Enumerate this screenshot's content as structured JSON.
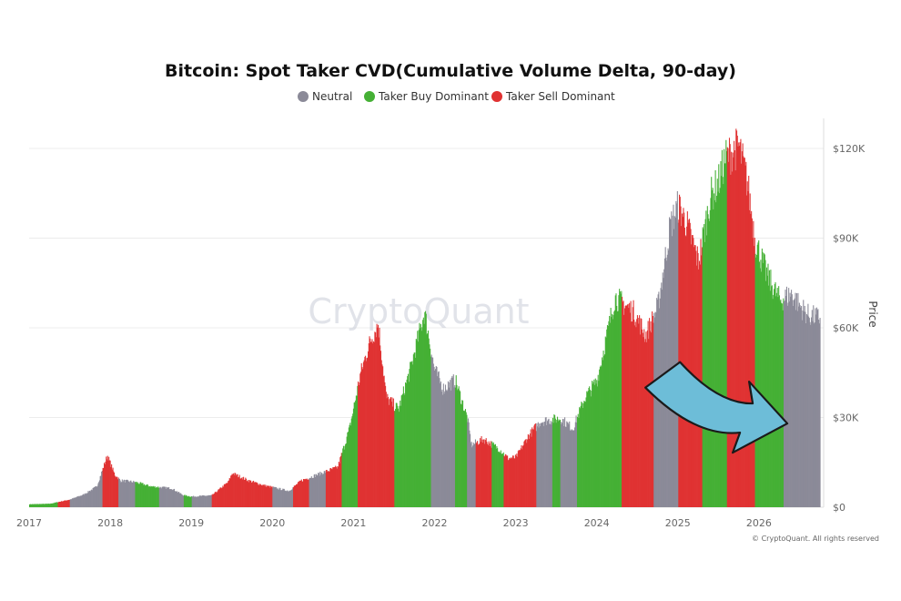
{
  "chart_data": {
    "type": "bar",
    "title": "Bitcoin: Spot Taker CVD(Cumulative Volume Delta, 90-day)",
    "ylabel": "Price",
    "ylim": [
      0,
      130000
    ],
    "yticks": [
      {
        "value": 0,
        "label": "$0"
      },
      {
        "value": 30000,
        "label": "$30K"
      },
      {
        "value": 60000,
        "label": "$60K"
      },
      {
        "value": 90000,
        "label": "$90K"
      },
      {
        "value": 120000,
        "label": "$120K"
      }
    ],
    "xlim": [
      2017,
      2026.75
    ],
    "xticks": [
      "2017",
      "2018",
      "2019",
      "2020",
      "2021",
      "2022",
      "2023",
      "2024",
      "2025",
      "2026"
    ],
    "grid": true,
    "legend_position": "top-center",
    "series": [
      {
        "name": "Neutral",
        "color": "#8b8a98"
      },
      {
        "name": "Taker Buy Dominant",
        "color": "#45b035"
      },
      {
        "name": "Taker Sell Dominant",
        "color": "#e03232"
      }
    ],
    "price_points": [
      [
        2017.0,
        1000
      ],
      [
        2017.25,
        1150
      ],
      [
        2017.5,
        2600
      ],
      [
        2017.67,
        4300
      ],
      [
        2017.83,
        7000
      ],
      [
        2017.96,
        17500
      ],
      [
        2018.05,
        11000
      ],
      [
        2018.12,
        9000
      ],
      [
        2018.3,
        8500
      ],
      [
        2018.5,
        7000
      ],
      [
        2018.75,
        6400
      ],
      [
        2018.9,
        4000
      ],
      [
        2019.0,
        3600
      ],
      [
        2019.25,
        4000
      ],
      [
        2019.45,
        8500
      ],
      [
        2019.5,
        11500
      ],
      [
        2019.7,
        9000
      ],
      [
        2019.9,
        7300
      ],
      [
        2020.2,
        5500
      ],
      [
        2020.35,
        9000
      ],
      [
        2020.6,
        11500
      ],
      [
        2020.8,
        13500
      ],
      [
        2020.95,
        27000
      ],
      [
        2021.08,
        45000
      ],
      [
        2021.2,
        56000
      ],
      [
        2021.3,
        62000
      ],
      [
        2021.4,
        37000
      ],
      [
        2021.55,
        33000
      ],
      [
        2021.7,
        47000
      ],
      [
        2021.87,
        66000
      ],
      [
        2021.99,
        47000
      ],
      [
        2022.1,
        40000
      ],
      [
        2022.25,
        43000
      ],
      [
        2022.4,
        30000
      ],
      [
        2022.45,
        21000
      ],
      [
        2022.6,
        23000
      ],
      [
        2022.8,
        19500
      ],
      [
        2022.9,
        16500
      ],
      [
        2023.0,
        16800
      ],
      [
        2023.15,
        24000
      ],
      [
        2023.3,
        29000
      ],
      [
        2023.55,
        30000
      ],
      [
        2023.7,
        26500
      ],
      [
        2023.85,
        37000
      ],
      [
        2024.0,
        43000
      ],
      [
        2024.15,
        62000
      ],
      [
        2024.22,
        71000
      ],
      [
        2024.45,
        66000
      ],
      [
        2024.6,
        58000
      ],
      [
        2024.75,
        68000
      ],
      [
        2024.9,
        95000
      ],
      [
        2025.0,
        102000
      ],
      [
        2025.1,
        96000
      ],
      [
        2025.25,
        83000
      ],
      [
        2025.4,
        105000
      ],
      [
        2025.5,
        110000
      ],
      [
        2025.58,
        118000
      ],
      [
        2025.75,
        122000
      ],
      [
        2025.85,
        110000
      ],
      [
        2025.95,
        90000
      ],
      [
        2026.1,
        78000
      ],
      [
        2026.25,
        70000
      ],
      [
        2026.4,
        72000
      ],
      [
        2026.5,
        68000
      ],
      [
        2026.6,
        65000
      ],
      [
        2026.72,
        64000
      ]
    ],
    "regimes": [
      {
        "start": 2017.0,
        "end": 2017.35,
        "state": "Taker Buy Dominant"
      },
      {
        "start": 2017.35,
        "end": 2017.5,
        "state": "Taker Sell Dominant"
      },
      {
        "start": 2017.5,
        "end": 2017.9,
        "state": "Neutral"
      },
      {
        "start": 2017.9,
        "end": 2018.1,
        "state": "Taker Sell Dominant"
      },
      {
        "start": 2018.1,
        "end": 2018.3,
        "state": "Neutral"
      },
      {
        "start": 2018.3,
        "end": 2018.6,
        "state": "Taker Buy Dominant"
      },
      {
        "start": 2018.6,
        "end": 2018.9,
        "state": "Neutral"
      },
      {
        "start": 2018.9,
        "end": 2019.0,
        "state": "Taker Buy Dominant"
      },
      {
        "start": 2019.0,
        "end": 2019.25,
        "state": "Neutral"
      },
      {
        "start": 2019.25,
        "end": 2019.45,
        "state": "Taker Sell Dominant"
      },
      {
        "start": 2019.45,
        "end": 2020.0,
        "state": "Taker Sell Dominant"
      },
      {
        "start": 2020.0,
        "end": 2020.25,
        "state": "Neutral"
      },
      {
        "start": 2020.25,
        "end": 2020.45,
        "state": "Taker Sell Dominant"
      },
      {
        "start": 2020.45,
        "end": 2020.65,
        "state": "Neutral"
      },
      {
        "start": 2020.65,
        "end": 2020.85,
        "state": "Taker Sell Dominant"
      },
      {
        "start": 2020.85,
        "end": 2021.05,
        "state": "Taker Buy Dominant"
      },
      {
        "start": 2021.05,
        "end": 2021.5,
        "state": "Taker Sell Dominant"
      },
      {
        "start": 2021.5,
        "end": 2021.95,
        "state": "Taker Buy Dominant"
      },
      {
        "start": 2021.95,
        "end": 2022.25,
        "state": "Neutral"
      },
      {
        "start": 2022.25,
        "end": 2022.4,
        "state": "Taker Buy Dominant"
      },
      {
        "start": 2022.4,
        "end": 2022.5,
        "state": "Neutral"
      },
      {
        "start": 2022.5,
        "end": 2022.7,
        "state": "Taker Sell Dominant"
      },
      {
        "start": 2022.7,
        "end": 2022.85,
        "state": "Taker Buy Dominant"
      },
      {
        "start": 2022.85,
        "end": 2023.1,
        "state": "Taker Sell Dominant"
      },
      {
        "start": 2023.1,
        "end": 2023.25,
        "state": "Taker Sell Dominant"
      },
      {
        "start": 2023.25,
        "end": 2023.45,
        "state": "Neutral"
      },
      {
        "start": 2023.45,
        "end": 2023.55,
        "state": "Taker Buy Dominant"
      },
      {
        "start": 2023.55,
        "end": 2023.75,
        "state": "Neutral"
      },
      {
        "start": 2023.75,
        "end": 2024.0,
        "state": "Taker Buy Dominant"
      },
      {
        "start": 2024.0,
        "end": 2024.3,
        "state": "Taker Buy Dominant"
      },
      {
        "start": 2024.3,
        "end": 2024.7,
        "state": "Taker Sell Dominant"
      },
      {
        "start": 2024.7,
        "end": 2025.0,
        "state": "Neutral"
      },
      {
        "start": 2025.0,
        "end": 2025.3,
        "state": "Taker Sell Dominant"
      },
      {
        "start": 2025.3,
        "end": 2025.6,
        "state": "Taker Buy Dominant"
      },
      {
        "start": 2025.6,
        "end": 2025.95,
        "state": "Taker Sell Dominant"
      },
      {
        "start": 2025.95,
        "end": 2026.3,
        "state": "Taker Buy Dominant"
      },
      {
        "start": 2026.3,
        "end": 2026.5,
        "state": "Neutral"
      },
      {
        "start": 2026.5,
        "end": 2026.75,
        "state": "Neutral"
      }
    ],
    "annotation": {
      "type": "arrow",
      "color": "#6dbdd8",
      "from": [
        2024.6,
        40000
      ],
      "to": [
        2026.35,
        28000
      ]
    },
    "watermark": "CryptoQuant",
    "copyright": "© CryptoQuant. All rights reserved"
  }
}
